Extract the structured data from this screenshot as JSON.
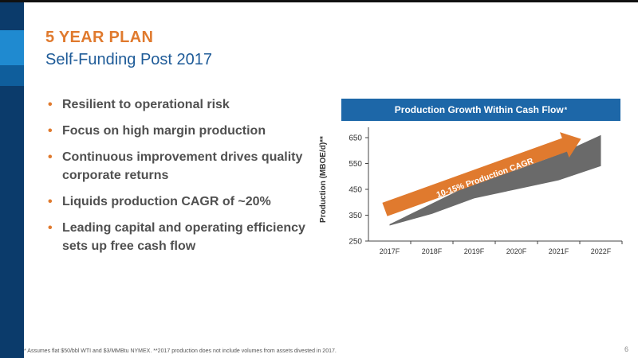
{
  "slide": {
    "title": "5 YEAR PLAN",
    "subtitle": "Self-Funding Post 2017",
    "bullets": [
      "Resilient to operational risk",
      "Focus on high margin production",
      "Continuous improvement drives quality corporate returns",
      "Liquids production CAGR of ~20%",
      "Leading capital and operating efficiency sets up free cash flow"
    ],
    "footnote": "* Assumes flat $50/bbl WTI and $3/MMBtu NYMEX. **2017 production does not include volumes from assets divested in 2017.",
    "page_number": "6"
  },
  "chart_header": {
    "title": "Production Growth Within Cash Flow",
    "marker": "*"
  },
  "colors": {
    "title": "#e07a2e",
    "subtitle": "#1e5b98",
    "header": "#1d67a8",
    "area": "#6a6a6a",
    "arrow": "#e07a2e",
    "left_bar": "#0b3b6b"
  },
  "chart_data": {
    "type": "area",
    "title": "Production Growth Within Cash Flow*",
    "xlabel": "",
    "ylabel": "Production (MBOE/d)**",
    "categories": [
      "2017F",
      "2018F",
      "2019F",
      "2020F",
      "2021F",
      "2022F"
    ],
    "series": [
      {
        "name": "",
        "low": [
          310,
          355,
          415,
          450,
          485,
          540
        ],
        "high": [
          315,
          395,
          475,
          525,
          585,
          660
        ]
      }
    ],
    "yticks": [
      250,
      350,
      450,
      550,
      650
    ],
    "ylim": [
      250,
      690
    ],
    "annotation": {
      "text": "10-15% Production CAGR",
      "arrow_from": [
        2017,
        390
      ],
      "arrow_to": [
        2021,
        660
      ]
    },
    "grid": false
  }
}
